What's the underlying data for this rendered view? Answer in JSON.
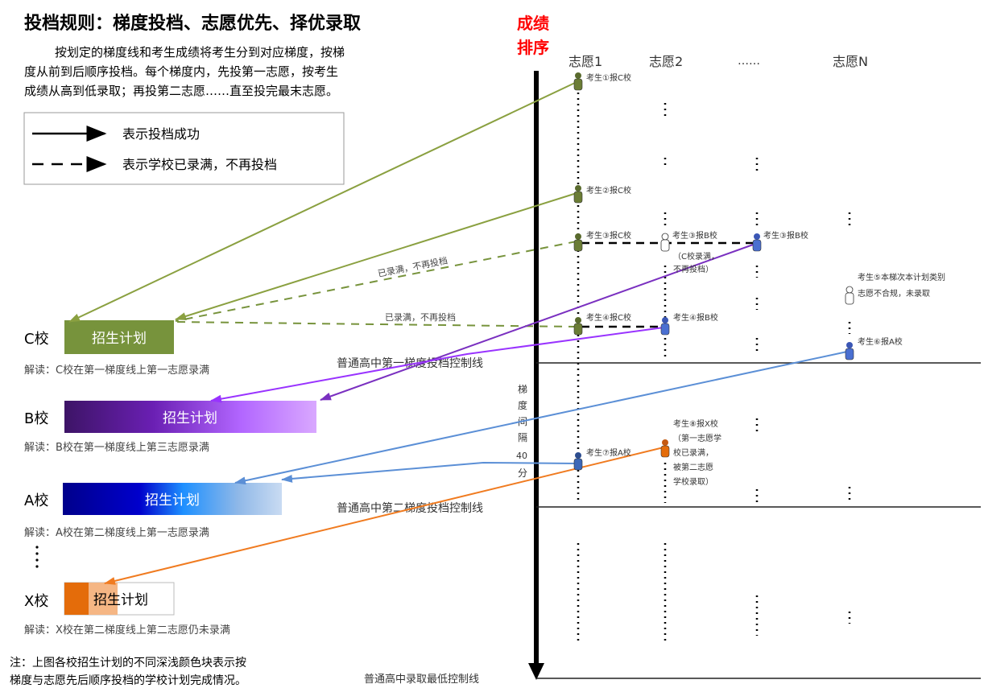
{
  "title": "投档规则：梯度投档、志愿优先、择优录取",
  "intro": [
    "按划定的梯度线和考生成绩将考生分到对应梯度，按梯",
    "度从前到后顺序投档。每个梯度内，先投第一志愿，按考生",
    "成绩从高到低录取；再投第二志愿……直至投完最末志愿。"
  ],
  "legend": {
    "solid": "表示投档成功",
    "dashed": "表示学校已录满，不再投档"
  },
  "axis_title": [
    "成绩",
    "排序"
  ],
  "columns": [
    "志愿1",
    "志愿2",
    "……",
    "志愿N"
  ],
  "lines": {
    "line1": "普通高中第一梯度投档控制线",
    "line2": "普通高中第二梯度投档控制线",
    "line3": "普通高中录取最低控制线"
  },
  "gap_label": [
    "梯",
    "度",
    "间",
    "隔",
    "40",
    "分"
  ],
  "schools": {
    "c": {
      "name": "C校",
      "plan": "招生计划",
      "note": "解读：C校在第一梯度线上第一志愿录满"
    },
    "b": {
      "name": "B校",
      "plan": "招生计划",
      "note": "解读：B校在第一梯度线上第三志愿录满"
    },
    "a": {
      "name": "A校",
      "plan": "招生计划",
      "note": "解读：A校在第二梯度线上第一志愿录满"
    },
    "x": {
      "name": "X校",
      "plan": "招生计划",
      "note": "解读：X校在第二梯度线上第二志愿仍未录满"
    }
  },
  "ellipsis_v": "⋮",
  "students": {
    "s1": "考生①报C校",
    "s2": "考生②报C校",
    "s3": "考生③报C校",
    "s3b": "考生③报B校",
    "s3c": "考生③报B校",
    "s3note": [
      "（C校录满，",
      "不再投档）"
    ],
    "s4": "考生④报C校",
    "s4b": "考生④报B校",
    "s5": "考生⑤本梯次本计划类别",
    "s5b": "志愿不合规，未录取",
    "s6": "考生⑥报A校",
    "s7": "考生⑦报A校",
    "s8": "考生⑧报X校",
    "s8note": [
      "（第一志愿学",
      "校已录满，",
      "被第二志愿",
      "学校录取）"
    ]
  },
  "dash_labels": {
    "d1": "已录满，不再投档",
    "d2": "已录满，不再投档"
  },
  "footnote": [
    "注：上图各校招生计划的不同深浅颜色块表示按",
    "梯度与志愿先后顺序投档的学校计划完成情况。"
  ],
  "colors": {
    "c_school": "#77933c",
    "b_school": "#7030a0",
    "a_school": "#0070c0",
    "x_school": "#e46c0a",
    "axis_title": "#ff0000",
    "line_c": "#8aa040",
    "line_b": "#9933ff",
    "line_a": "#5b8fd6",
    "line_x": "#f07b20"
  }
}
